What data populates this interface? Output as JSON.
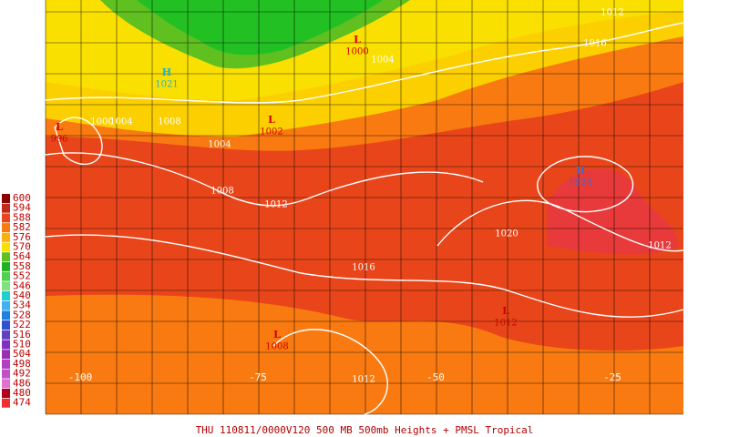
{
  "legend": [
    {
      "label": "600",
      "color": "#8b0000"
    },
    {
      "label": "594",
      "color": "#c0281c"
    },
    {
      "label": "588",
      "color": "#e8461a"
    },
    {
      "label": "582",
      "color": "#f97a10"
    },
    {
      "label": "576",
      "color": "#fcb010"
    },
    {
      "label": "570",
      "color": "#fae000"
    },
    {
      "label": "564",
      "color": "#5fc020"
    },
    {
      "label": "558",
      "color": "#22b022"
    },
    {
      "label": "552",
      "color": "#4cd24c"
    },
    {
      "label": "546",
      "color": "#7ee27e"
    },
    {
      "label": "540",
      "color": "#20d0d0"
    },
    {
      "label": "534",
      "color": "#40b0f0"
    },
    {
      "label": "528",
      "color": "#2080e0"
    },
    {
      "label": "522",
      "color": "#3050d0"
    },
    {
      "label": "516",
      "color": "#6040c0"
    },
    {
      "label": "510",
      "color": "#8030c0"
    },
    {
      "label": "504",
      "color": "#9a30b0"
    },
    {
      "label": "498",
      "color": "#b040c0"
    },
    {
      "label": "492",
      "color": "#c050c8"
    },
    {
      "label": "486",
      "color": "#e070d0"
    },
    {
      "label": "480",
      "color": "#b00020"
    },
    {
      "label": "474",
      "color": "#f03030"
    }
  ],
  "pressure_systems": [
    {
      "symbol": "H",
      "value": "1021"
    },
    {
      "symbol": "L",
      "value": "996"
    },
    {
      "symbol": "L",
      "value": "1002"
    },
    {
      "symbol": "L",
      "value": "1000"
    },
    {
      "symbol": "H",
      "value": "1024"
    },
    {
      "symbol": "L",
      "value": "1012"
    },
    {
      "symbol": "L",
      "value": "1008"
    }
  ],
  "contour_labels": [
    "1012",
    "1016",
    "1004",
    "1000",
    "1004",
    "1008",
    "1004",
    "1008",
    "1012",
    "1020",
    "1012",
    "1016",
    "1012"
  ],
  "longitude_labels": [
    "-100",
    "-75",
    "-50",
    "-25"
  ],
  "caption": "THU 110811/0000V120  500 MB 500mb Heights + PMSL Tropical"
}
